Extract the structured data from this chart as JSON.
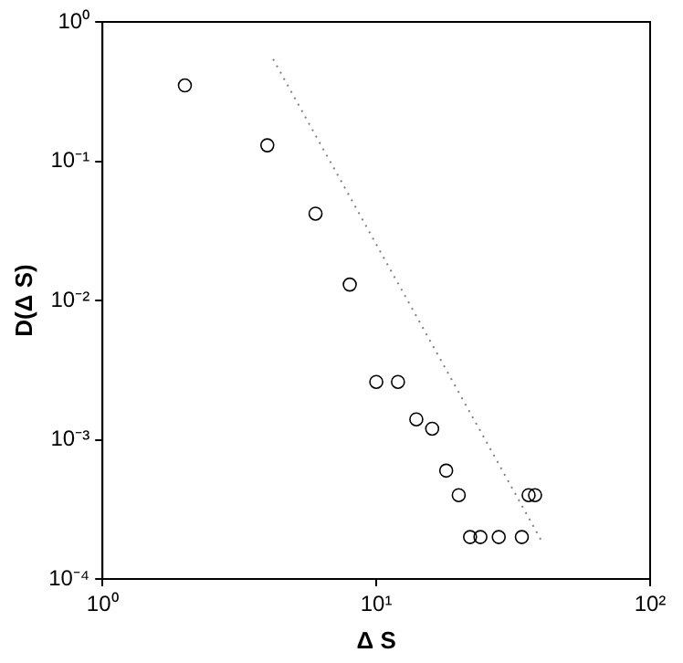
{
  "chart_data": {
    "type": "scatter",
    "xlabel": "Δ S",
    "ylabel": "D(Δ S)",
    "log": "xy",
    "grid": false,
    "legend": false,
    "xlim": [
      1,
      100
    ],
    "ylim": [
      0.0001,
      1
    ],
    "xticks": [
      {
        "value": 1,
        "label": "10⁰"
      },
      {
        "value": 10,
        "label": "10¹"
      },
      {
        "value": 100,
        "label": "10²"
      }
    ],
    "yticks": [
      {
        "value": 0.0001,
        "label": "10⁻⁴"
      },
      {
        "value": 0.001,
        "label": "10⁻³"
      },
      {
        "value": 0.01,
        "label": "10⁻²"
      },
      {
        "value": 0.1,
        "label": "10⁻¹"
      },
      {
        "value": 1,
        "label": "10⁰"
      }
    ],
    "series": [
      {
        "color": "#000000",
        "marker": "circle",
        "x": [
          2,
          4,
          6,
          8,
          10,
          12,
          14,
          16,
          18,
          20,
          22,
          24,
          28,
          34,
          36,
          38
        ],
        "values": [
          0.35,
          0.13,
          0.042,
          0.013,
          0.0026,
          0.0026,
          0.0014,
          0.0012,
          0.0006,
          0.0004,
          0.0002,
          0.0002,
          0.0002,
          0.0002,
          0.0004,
          0.0004
        ]
      },
      {
        "type": "line",
        "color": "#808080",
        "marker": "none",
        "line_style": "dotted",
        "x": [
          4.2,
          40
        ],
        "values": [
          0.54,
          0.00019
        ]
      }
    ]
  }
}
